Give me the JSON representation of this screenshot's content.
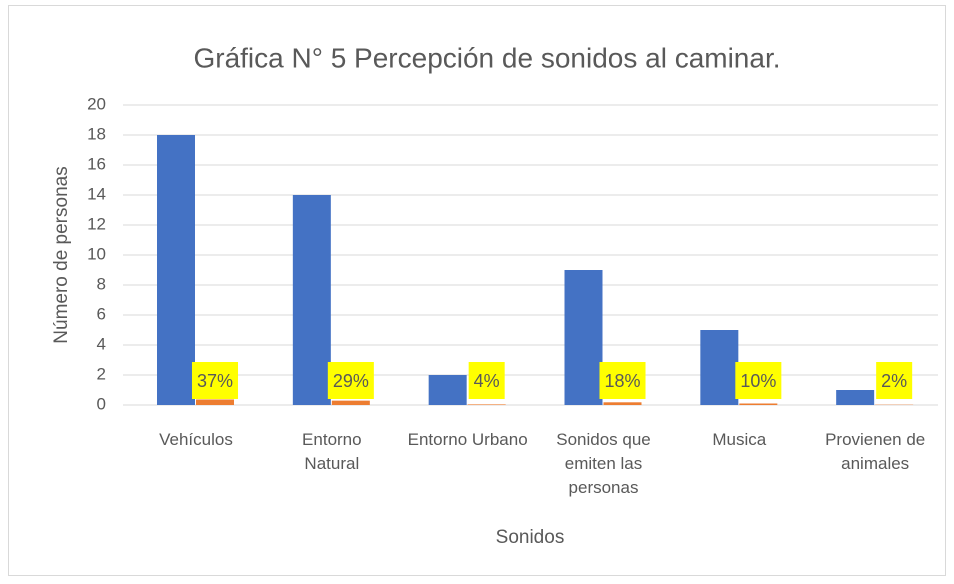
{
  "chart_data": {
    "type": "bar",
    "title": "Gráfica N° 5 Percepción de sonidos al caminar.",
    "x_label": "Sonidos",
    "y_label": "Número de personas",
    "categories": [
      "Vehículos",
      "Entorno Natural",
      "Entorno Urbano",
      "Sonidos que emiten las personas",
      "Musica",
      "Provienen de animales"
    ],
    "series": [
      {
        "color": "#4472c4",
        "values": [
          18,
          14,
          2,
          9,
          5,
          1
        ]
      },
      {
        "color": "#ed7d31",
        "values": [
          0.37,
          0.29,
          0.04,
          0.18,
          0.1,
          0.02
        ],
        "value_labels": [
          "37%",
          "29%",
          "4%",
          "18%",
          "10%",
          "2%"
        ],
        "label_background": "#ffff00"
      }
    ],
    "ylim": [
      0,
      20
    ],
    "yticks": [
      0,
      2,
      4,
      6,
      8,
      10,
      12,
      14,
      16,
      18,
      20
    ],
    "grid": true
  }
}
